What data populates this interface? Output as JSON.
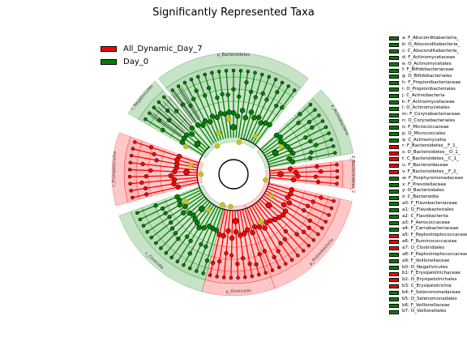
{
  "chart_data": {
    "type": "cladogram",
    "title": "Significantly Represented Taxa",
    "class_colors": {
      "All_Dynamic_Day_7": "#ff0000",
      "Day_0": "#008000"
    },
    "legend": [
      "All_Dynamic_Day_7",
      "Day_0"
    ],
    "sectors": [
      {
        "name": "p_Bacteroidetes",
        "class": "Day_0",
        "start_deg": -38,
        "end_deg": 38
      },
      {
        "name": "p_Actinobacteria",
        "class": "Day_0",
        "start_deg": 46,
        "end_deg": 80
      },
      {
        "name": "Z_Bacteroidetes_2",
        "class": "All_Dynamic_Day_7",
        "start_deg": 83,
        "end_deg": 97
      },
      {
        "name": "p_Proteobacteria",
        "class": "All_Dynamic_Day_7",
        "start_deg": 103,
        "end_deg": 160
      },
      {
        "name": "p_Firmicutes",
        "class": "All_Dynamic_Day_7",
        "start_deg": 160,
        "end_deg": 195
      },
      {
        "name": "c_Clostridia",
        "class": "Day_0",
        "start_deg": 195,
        "end_deg": 250
      },
      {
        "name": "c_Erysipelotrichia",
        "class": "All_Dynamic_Day_7",
        "start_deg": 255,
        "end_deg": 290
      },
      {
        "name": "c_Negativicutes",
        "class": "Day_0",
        "start_deg": 300,
        "end_deg": 320
      }
    ],
    "taxa": [
      {
        "code": "a",
        "label": "F_Absconditabacteria_",
        "class": "Day_0"
      },
      {
        "code": "b",
        "label": "O_Absconditabacteria_",
        "class": "Day_0"
      },
      {
        "code": "c",
        "label": "C_Absconditabacteria_",
        "class": "Day_0"
      },
      {
        "code": "d",
        "label": "F_Actinomycetaceae",
        "class": "Day_0"
      },
      {
        "code": "e",
        "label": "O_Actinomycetales",
        "class": "Day_0"
      },
      {
        "code": "f",
        "label": "F_Bifidobacteriaceae",
        "class": "Day_0"
      },
      {
        "code": "g",
        "label": "O_Bifidobacteriales",
        "class": "Day_0"
      },
      {
        "code": "h",
        "label": "F_Propionibacteriaceae",
        "class": "Day_0"
      },
      {
        "code": "i",
        "label": "O_Propionibacteriales",
        "class": "Day_0"
      },
      {
        "code": "j",
        "label": "C_Actinobacteria",
        "class": "Day_0"
      },
      {
        "code": "k",
        "label": "F_Actinomycetaceae",
        "class": "Day_0"
      },
      {
        "code": "l",
        "label": "O_Actinomycetales",
        "class": "Day_0"
      },
      {
        "code": "m",
        "label": "F_Corynebacteriaceae",
        "class": "Day_0"
      },
      {
        "code": "n",
        "label": "O_Corynebacteriales",
        "class": "Day_0"
      },
      {
        "code": "o",
        "label": "F_Micrococcaceae",
        "class": "Day_0"
      },
      {
        "code": "p",
        "label": "O_Micrococcales",
        "class": "Day_0"
      },
      {
        "code": "q",
        "label": "C_Actinomycetia",
        "class": "Day_0"
      },
      {
        "code": "r",
        "label": "F_Bacteroidetes__F_1_",
        "class": "All_Dynamic_Day_7"
      },
      {
        "code": "s",
        "label": "O_Bacteroidetes__O_1_",
        "class": "All_Dynamic_Day_7"
      },
      {
        "code": "t",
        "label": "C_Bacteroidetes__C_1_",
        "class": "All_Dynamic_Day_7"
      },
      {
        "code": "u",
        "label": "F_Bacteroidaceae",
        "class": "All_Dynamic_Day_7"
      },
      {
        "code": "v",
        "label": "F_Bacteroidetes__F_2_",
        "class": "All_Dynamic_Day_7"
      },
      {
        "code": "w",
        "label": "F_Porphyromonadaceae",
        "class": "Day_0"
      },
      {
        "code": "x",
        "label": "F_Prevotellaceae",
        "class": "Day_0"
      },
      {
        "code": "y",
        "label": "O_Bacteroidales",
        "class": "Day_0"
      },
      {
        "code": "z",
        "label": "C_Bacteroidia",
        "class": "Day_0"
      },
      {
        "code": "a0",
        "label": "F_Flavobacteriaceae",
        "class": "Day_0"
      },
      {
        "code": "a1",
        "label": "O_Flavobacteriales",
        "class": "Day_0"
      },
      {
        "code": "a2",
        "label": "C_Flavobacteriia",
        "class": "Day_0"
      },
      {
        "code": "a3",
        "label": "F_Aerococcaceae",
        "class": "Day_0"
      },
      {
        "code": "a4",
        "label": "F_Carnobacteriaceae",
        "class": "Day_0"
      },
      {
        "code": "a5",
        "label": "F_Peptostreptococcaceae",
        "class": "All_Dynamic_Day_7"
      },
      {
        "code": "a6",
        "label": "F_Ruminococcaceae",
        "class": "All_Dynamic_Day_7"
      },
      {
        "code": "a7",
        "label": "O_Clostridiales",
        "class": "All_Dynamic_Day_7"
      },
      {
        "code": "a8",
        "label": "F_Peptostreptococcaceae",
        "class": "Day_0"
      },
      {
        "code": "a9",
        "label": "F_Veillonellaceae",
        "class": "Day_0"
      },
      {
        "code": "b0",
        "label": "O_Negativicutes",
        "class": "Day_0"
      },
      {
        "code": "b1",
        "label": "F_Erysipelotrichaceae",
        "class": "All_Dynamic_Day_7"
      },
      {
        "code": "b2",
        "label": "O_Erysipelotrichales",
        "class": "All_Dynamic_Day_7"
      },
      {
        "code": "b3",
        "label": "C_Erysipelotrichia",
        "class": "All_Dynamic_Day_7"
      },
      {
        "code": "b4",
        "label": "F_Selenomonadaceae",
        "class": "Day_0"
      },
      {
        "code": "b5",
        "label": "O_Selenomonadales",
        "class": "Day_0"
      },
      {
        "code": "b6",
        "label": "F_Veillonellaceae",
        "class": "Day_0"
      },
      {
        "code": "b7",
        "label": "O_Veillonellales",
        "class": "Day_0"
      }
    ]
  }
}
